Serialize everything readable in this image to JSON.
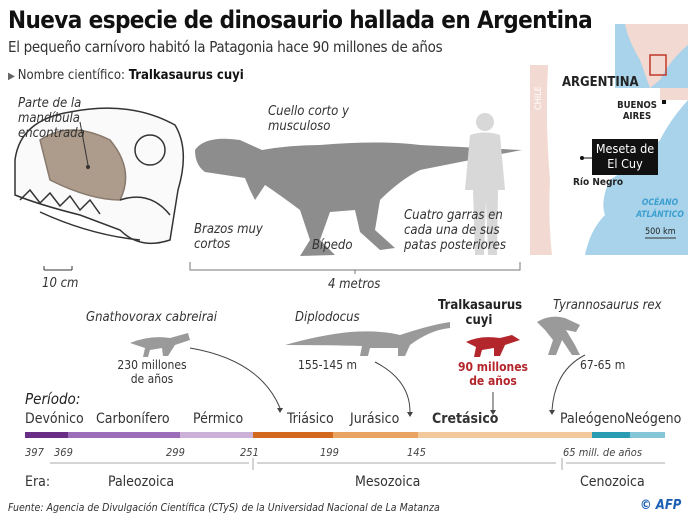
{
  "header": {
    "title": "Nueva especie de dinosaurio hallada en Argentina",
    "subtitle": "El pequeño carnívoro habitó la Patagonia hace 90 millones de años",
    "scientific_name_label": "Nombre científico:",
    "scientific_name": "Tralkasaurus cuyi"
  },
  "skull": {
    "label": "Parte de la mandíbula encontrada",
    "scale": "10 cm"
  },
  "silhouette": {
    "neck": "Cuello corto y musculoso",
    "arms": "Brazos muy cortos",
    "biped": "Bípedo",
    "claws": "Cuatro garras en cada una de sus patas posteriores",
    "length": "4 metros"
  },
  "map": {
    "country": "ARGENTINA",
    "neighbor": "CHILE",
    "capital": "BUENOS AIRES",
    "site": "Meseta de El Cuy",
    "province": "Río Negro",
    "ocean": "OCÉANO ATLÁNTICO",
    "scale": "500 km"
  },
  "species": [
    {
      "name": "Gnathovorax cabreirai",
      "age": "230 millones de años"
    },
    {
      "name": "Diplodocus",
      "age": "155-145 m"
    },
    {
      "name": "Tralkasaurus cuyi",
      "age": "90 millones de años",
      "color": "#b3262b"
    },
    {
      "name": "Tyrannosaurus rex",
      "age": "67-65 m"
    }
  ],
  "timeline": {
    "period_label": "Período:",
    "era_label": "Era:",
    "periods": [
      {
        "name": "Devónico",
        "color": "#6a2d86"
      },
      {
        "name": "Carbonífero",
        "color": "#9c6db8"
      },
      {
        "name": "Pérmico",
        "color": "#cbb0d8"
      },
      {
        "name": "Triásico",
        "color": "#d2691f"
      },
      {
        "name": "Jurásico",
        "color": "#e9a463"
      },
      {
        "name": "Cretásico",
        "color": "#f2c99c"
      },
      {
        "name": "Paleógeno",
        "color": "#2a9cb1"
      },
      {
        "name": "Neógeno",
        "color": "#84c6d8"
      }
    ],
    "ages": [
      "397",
      "369",
      "299",
      "251",
      "199",
      "145",
      "65 mill. de años"
    ],
    "eras": [
      "Paleozoica",
      "Mesozoica",
      "Cenozoica"
    ]
  },
  "footer": {
    "source": "Fuente: Agencia de Divulgación Científica (CTyS) de la Universidad Nacional de La Matanza",
    "credit": "© AFP"
  }
}
